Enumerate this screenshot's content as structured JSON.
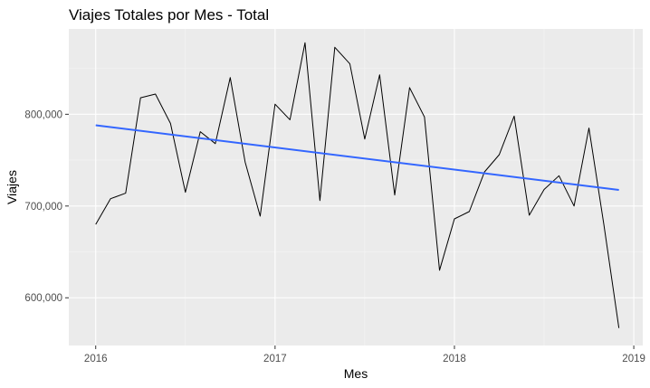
{
  "chart_data": {
    "type": "line",
    "title": "Viajes Totales por Mes - Total",
    "xlabel": "Mes",
    "ylabel": "Viajes",
    "x_ticks": [
      {
        "label": "2016",
        "value": 2016.0
      },
      {
        "label": "2017",
        "value": 2017.0
      },
      {
        "label": "2018",
        "value": 2018.0
      },
      {
        "label": "2019",
        "value": 2019.0
      }
    ],
    "y_ticks": [
      {
        "label": "600,000",
        "value": 600000
      },
      {
        "label": "700,000",
        "value": 700000
      },
      {
        "label": "800,000",
        "value": 800000
      }
    ],
    "xlim": [
      2015.85,
      2019.05
    ],
    "ylim": [
      548000,
      893000
    ],
    "grid": true,
    "legend": "none",
    "colors": {
      "panel_background": "#ebebeb",
      "grid_major": "#ffffff",
      "grid_minor": "#f5f5f5",
      "series_line": "#000000",
      "trend_line": "#3366ff"
    },
    "series": [
      {
        "x": [
          2016.0,
          2016.083,
          2016.167,
          2016.25,
          2016.333,
          2016.417,
          2016.5,
          2016.583,
          2016.667,
          2016.75,
          2016.833,
          2016.917,
          2017.0,
          2017.083,
          2017.167,
          2017.25,
          2017.333,
          2017.417,
          2017.5,
          2017.583,
          2017.667,
          2017.75,
          2017.833,
          2017.917,
          2018.0,
          2018.083,
          2018.167,
          2018.25,
          2018.333,
          2018.417,
          2018.5,
          2018.583,
          2018.667,
          2018.75,
          2018.833,
          2018.917
        ],
        "values": [
          680000,
          708000,
          714000,
          818000,
          822000,
          790000,
          715000,
          781000,
          768000,
          840000,
          748000,
          689000,
          811000,
          794000,
          878000,
          706000,
          873000,
          855000,
          773000,
          843000,
          712000,
          829000,
          797000,
          630000,
          686000,
          694000,
          737000,
          756000,
          798000,
          690000,
          718000,
          733000,
          700000,
          785000,
          680000,
          567000
        ]
      },
      {
        "x": [
          2016.0,
          2018.917
        ],
        "values": [
          788000,
          717500
        ]
      }
    ]
  }
}
